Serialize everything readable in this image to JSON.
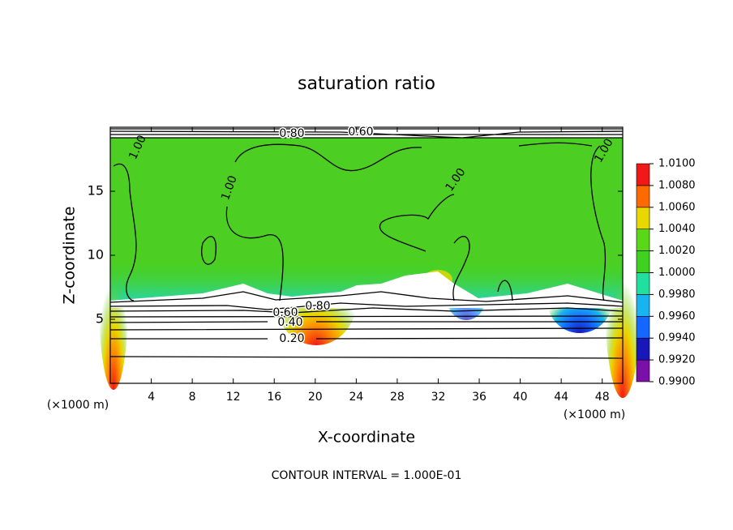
{
  "chart_data": {
    "type": "contour",
    "title": "saturation ratio",
    "x_label": "X-coordinate",
    "y_label": "Z-coordinate",
    "x_unit_label": "(×1000 m)",
    "y_unit_label": "(×1000 m)",
    "footer": "CONTOUR INTERVAL = 1.000E-01",
    "xlim": [
      0,
      50
    ],
    "xticks": [
      4,
      8,
      12,
      16,
      20,
      24,
      28,
      32,
      36,
      40,
      44,
      48
    ],
    "ylim": [
      0,
      20
    ],
    "yticks": [
      5,
      10,
      15
    ],
    "contour_labels": [
      "1.00",
      "1.00",
      "1.00",
      "1.00",
      "0.80",
      "0.60",
      "0.60",
      "0.80",
      "0.40",
      "0.20"
    ],
    "colorbar": {
      "levels": [
        {
          "value": 0.99,
          "label": "0.9900"
        },
        {
          "value": 0.992,
          "label": "0.9920"
        },
        {
          "value": 0.994,
          "label": "0.9940"
        },
        {
          "value": 0.996,
          "label": "0.9960"
        },
        {
          "value": 0.998,
          "label": "0.9980"
        },
        {
          "value": 1.0,
          "label": "1.0000"
        },
        {
          "value": 1.002,
          "label": "1.0020"
        },
        {
          "value": 1.004,
          "label": "1.0040"
        },
        {
          "value": 1.006,
          "label": "1.0060"
        },
        {
          "value": 1.008,
          "label": "1.0080"
        },
        {
          "value": 1.01,
          "label": "1.0100"
        }
      ],
      "colors": [
        "#7a10a8",
        "#1818b8",
        "#1468ff",
        "#18b4f0",
        "#20e0a0",
        "#40d020",
        "#5ad818",
        "#e8d800",
        "#ff6a00",
        "#f01818",
        "#f08c8c"
      ]
    }
  }
}
